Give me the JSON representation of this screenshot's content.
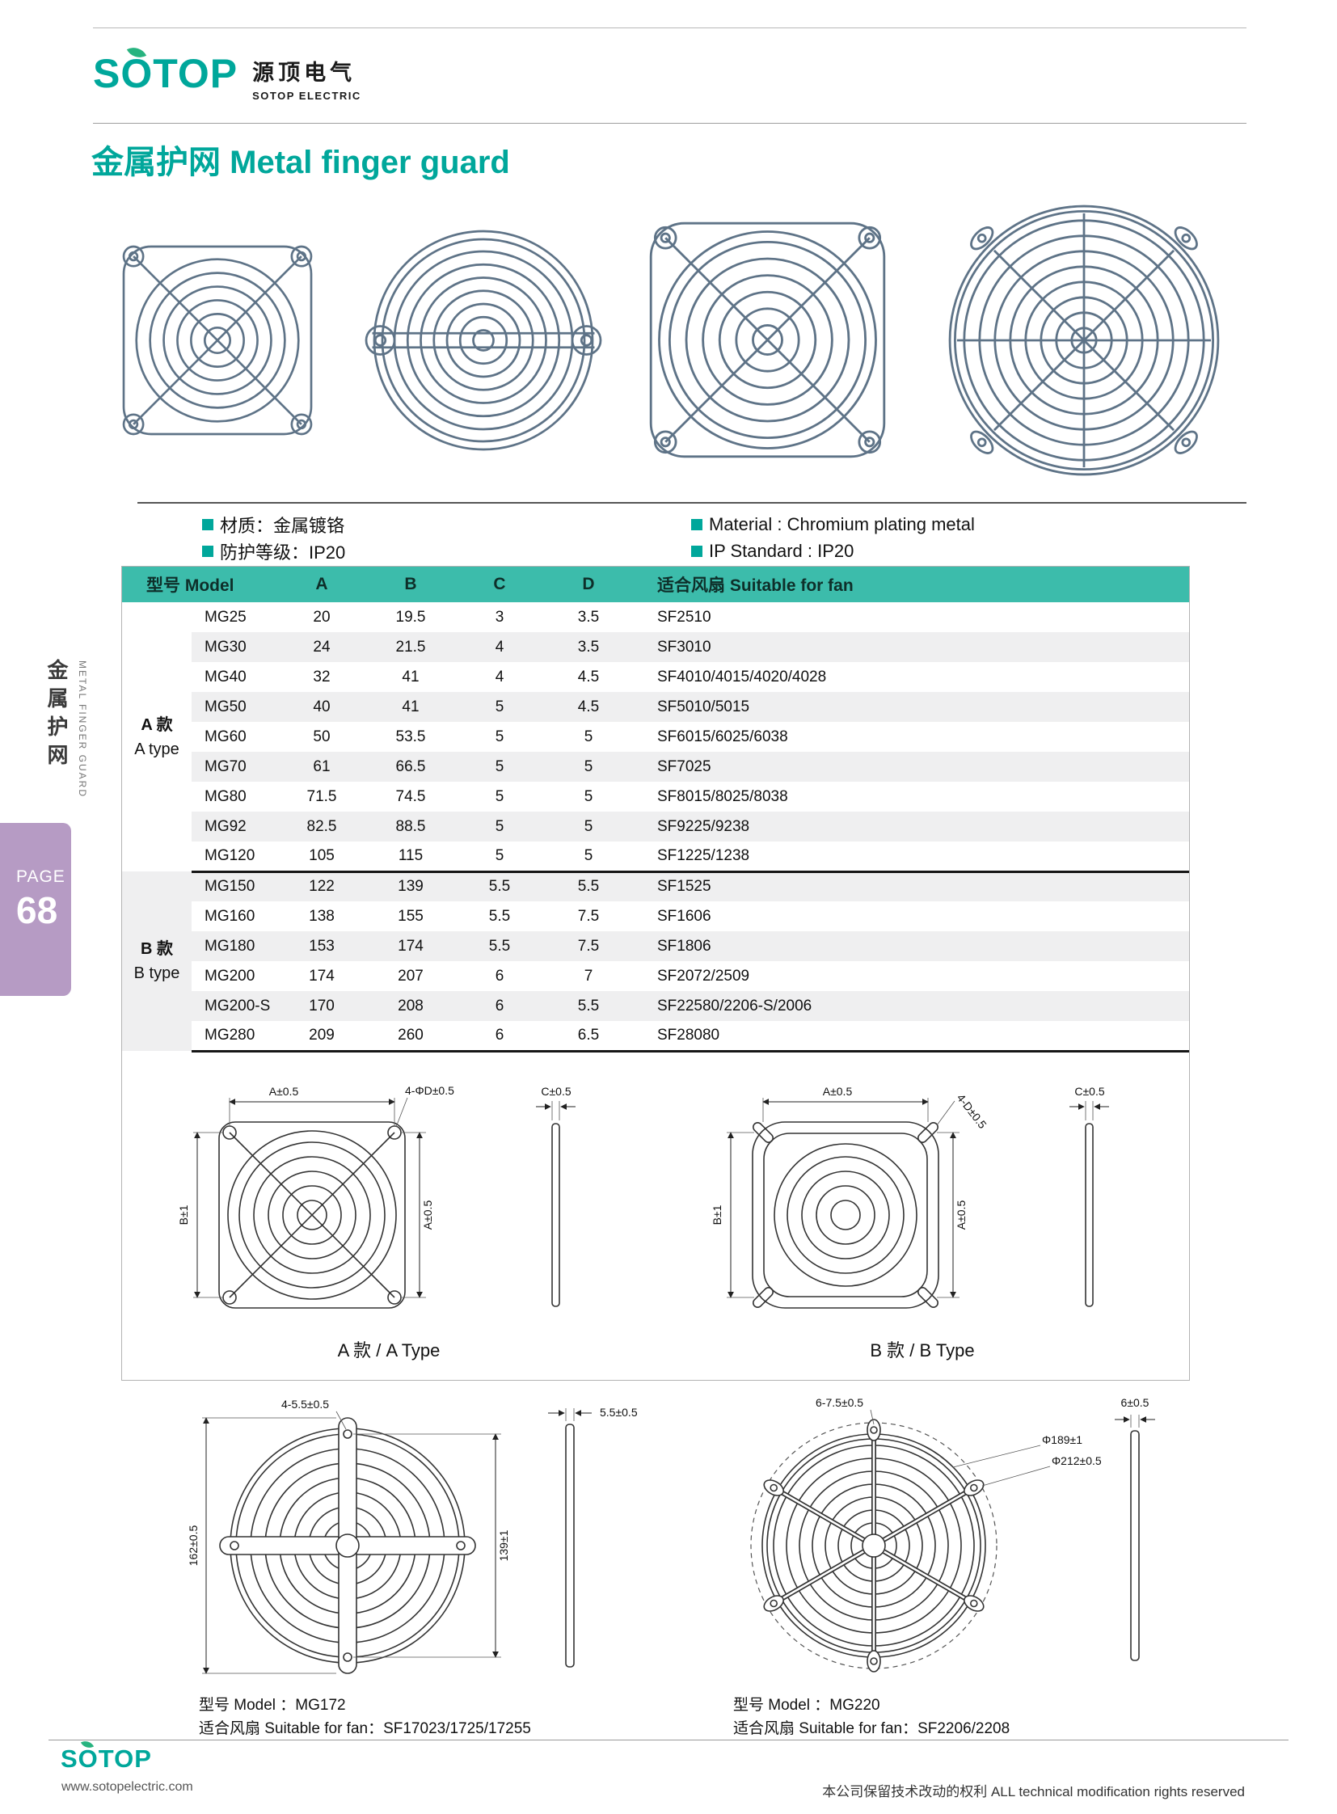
{
  "colors": {
    "accent": "#00a79b",
    "table_header": "#3cbcab",
    "page_box": "#b69bc4"
  },
  "brand": {
    "logo": "SOTOP",
    "logo_cn": "源顶电气",
    "logo_sub": "SOTOP ELECTRIC"
  },
  "title": {
    "cn": "金属护网",
    "en": "Metal finger guard"
  },
  "specs": {
    "material_cn": "材质：金属镀铬",
    "ip_cn": "防护等级：IP20",
    "material_en": "Material : Chromium plating metal",
    "ip_en": "IP Standard : IP20"
  },
  "sidebar": {
    "cn": "金属护网",
    "en": "METAL FINGER GUARD",
    "page_label": "PAGE",
    "page_number": "68"
  },
  "table": {
    "headers": {
      "model": "型号 Model",
      "a": "A",
      "b": "B",
      "c": "C",
      "d": "D",
      "fan": "适合风扇 Suitable for fan"
    },
    "groups": [
      {
        "label_cn": "A 款",
        "label_en": "A type",
        "rows": [
          [
            "MG25",
            "20",
            "19.5",
            "3",
            "3.5",
            "SF2510"
          ],
          [
            "MG30",
            "24",
            "21.5",
            "4",
            "3.5",
            "SF3010"
          ],
          [
            "MG40",
            "32",
            "41",
            "4",
            "4.5",
            "SF4010/4015/4020/4028"
          ],
          [
            "MG50",
            "40",
            "41",
            "5",
            "4.5",
            "SF5010/5015"
          ],
          [
            "MG60",
            "50",
            "53.5",
            "5",
            "5",
            "SF6015/6025/6038"
          ],
          [
            "MG70",
            "61",
            "66.5",
            "5",
            "5",
            "SF7025"
          ],
          [
            "MG80",
            "71.5",
            "74.5",
            "5",
            "5",
            "SF8015/8025/8038"
          ],
          [
            "MG92",
            "82.5",
            "88.5",
            "5",
            "5",
            "SF9225/9238"
          ],
          [
            "MG120",
            "105",
            "115",
            "5",
            "5",
            "SF1225/1238"
          ]
        ]
      },
      {
        "label_cn": "B 款",
        "label_en": "B type",
        "rows": [
          [
            "MG150",
            "122",
            "139",
            "5.5",
            "5.5",
            "SF1525"
          ],
          [
            "MG160",
            "138",
            "155",
            "5.5",
            "7.5",
            "SF1606"
          ],
          [
            "MG180",
            "153",
            "174",
            "5.5",
            "7.5",
            "SF1806"
          ],
          [
            "MG200",
            "174",
            "207",
            "6",
            "7",
            "SF2072/2509"
          ],
          [
            "MG200-S",
            "170",
            "208",
            "6",
            "5.5",
            "SF22580/2206-S/2006"
          ],
          [
            "MG280",
            "209",
            "260",
            "6",
            "6.5",
            "SF28080"
          ]
        ]
      }
    ]
  },
  "drawings": {
    "a_type": {
      "caption": "A 款 / A Type",
      "dim_a_top": "A±0.5",
      "dim_hole": "4-ΦD±0.5",
      "dim_c": "C±0.5",
      "dim_b": "B±1",
      "dim_a_side": "A±0.5"
    },
    "b_type": {
      "caption": "B 款 / B Type",
      "dim_a_top": "A±0.5",
      "dim_hole": "4-D±0.5",
      "dim_c": "C±0.5",
      "dim_b": "B±1",
      "dim_a_side": "A±0.5"
    },
    "mg172": {
      "dim_hole": "4-5.5±0.5",
      "dim_c": "5.5±0.5",
      "dim_height": "162±0.5",
      "dim_inner": "139±1",
      "model": "型号 Model ：MG172",
      "fan": "适合风扇 Suitable for fan：SF17023/1725/17255"
    },
    "mg220": {
      "dim_hole": "6-7.5±0.5",
      "dim_c": "6±0.5",
      "dim_d_inner": "Φ189±1",
      "dim_d_outer": "Φ212±0.5",
      "model": "型号 Model ：MG220",
      "fan": "适合风扇 Suitable for fan：SF2206/2208"
    }
  },
  "footer": {
    "logo": "SOTOP",
    "url": "www.sotopelectric.com",
    "rights": "本公司保留技术改动的权利 ALL technical modification rights reserved"
  }
}
